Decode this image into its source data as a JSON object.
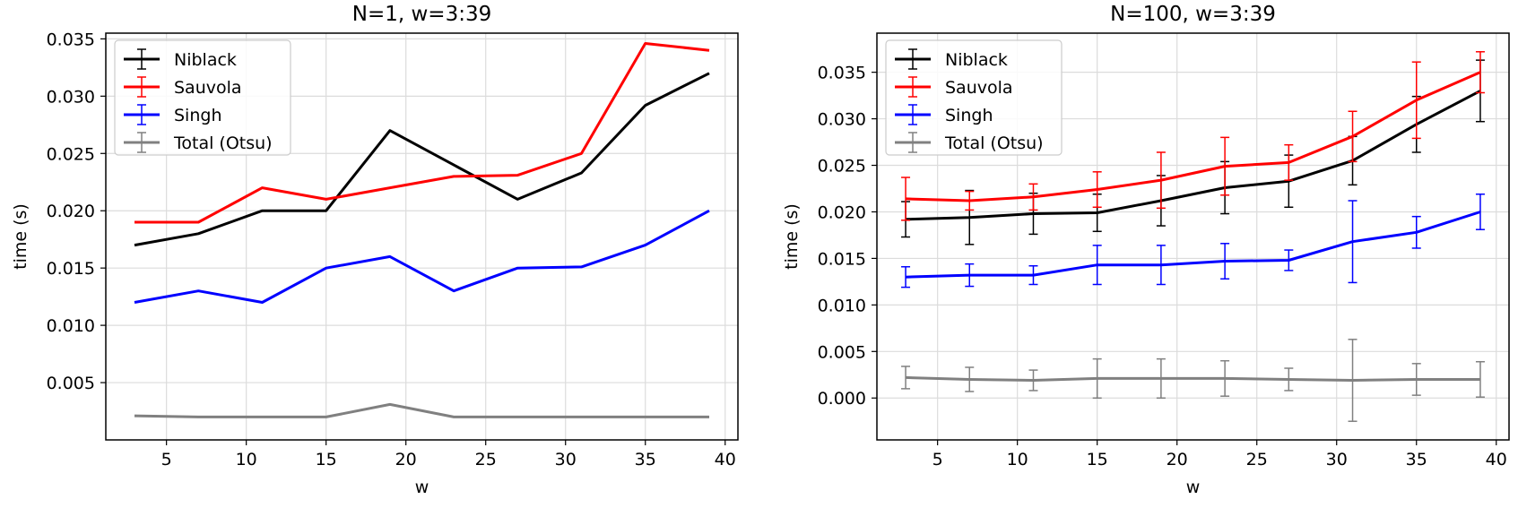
{
  "chart_data": [
    {
      "type": "line",
      "title": "N=1, w=3:39",
      "xlabel": "w",
      "ylabel": "time (s)",
      "xlim": [
        1.2,
        40.8
      ],
      "ylim": [
        0.0,
        0.0355
      ],
      "xticks": [
        5,
        10,
        15,
        20,
        25,
        30,
        35,
        40
      ],
      "xtick_labels": [
        "5",
        "10",
        "15",
        "20",
        "25",
        "30",
        "35",
        "40"
      ],
      "yticks": [
        0.005,
        0.01,
        0.015,
        0.02,
        0.025,
        0.03,
        0.035
      ],
      "ytick_labels": [
        "0.005",
        "0.010",
        "0.015",
        "0.020",
        "0.025",
        "0.030",
        "0.035"
      ],
      "grid": true,
      "legend_position": "upper-left",
      "x": [
        3,
        7,
        11,
        15,
        19,
        23,
        27,
        31,
        35,
        39
      ],
      "series": [
        {
          "name": "Niblack",
          "color": "#000000",
          "values": [
            0.017,
            0.018,
            0.02,
            0.02,
            0.027,
            0.024,
            0.021,
            0.0233,
            0.0292,
            0.032
          ]
        },
        {
          "name": "Sauvola",
          "color": "#ff0000",
          "values": [
            0.019,
            0.019,
            0.022,
            0.021,
            0.022,
            0.023,
            0.0231,
            0.025,
            0.0346,
            0.034
          ]
        },
        {
          "name": "Singh",
          "color": "#0000ff",
          "values": [
            0.012,
            0.013,
            0.012,
            0.015,
            0.016,
            0.013,
            0.015,
            0.0151,
            0.017,
            0.02
          ]
        },
        {
          "name": "Total (Otsu)",
          "color": "#808080",
          "values": [
            0.0021,
            0.002,
            0.002,
            0.002,
            0.0031,
            0.002,
            0.002,
            0.002,
            0.002,
            0.002
          ]
        }
      ]
    },
    {
      "type": "line",
      "title": "N=100, w=3:39",
      "xlabel": "w",
      "ylabel": "time (s)",
      "xlim": [
        1.2,
        40.8
      ],
      "ylim": [
        -0.0045,
        0.0392
      ],
      "xticks": [
        5,
        10,
        15,
        20,
        25,
        30,
        35,
        40
      ],
      "xtick_labels": [
        "5",
        "10",
        "15",
        "20",
        "25",
        "30",
        "35",
        "40"
      ],
      "yticks": [
        0.0,
        0.005,
        0.01,
        0.015,
        0.02,
        0.025,
        0.03,
        0.035
      ],
      "ytick_labels": [
        "0.000",
        "0.005",
        "0.010",
        "0.015",
        "0.020",
        "0.025",
        "0.030",
        "0.035"
      ],
      "grid": true,
      "legend_position": "upper-left",
      "x": [
        3,
        7,
        11,
        15,
        19,
        23,
        27,
        31,
        35,
        39
      ],
      "series": [
        {
          "name": "Niblack",
          "color": "#000000",
          "values": [
            0.0192,
            0.0194,
            0.0198,
            0.0199,
            0.0212,
            0.0226,
            0.0233,
            0.0255,
            0.0294,
            0.033
          ],
          "errors": [
            0.0019,
            0.0029,
            0.0022,
            0.002,
            0.0027,
            0.0028,
            0.0028,
            0.0026,
            0.003,
            0.0033
          ]
        },
        {
          "name": "Sauvola",
          "color": "#ff0000",
          "values": [
            0.0214,
            0.0212,
            0.0216,
            0.0224,
            0.0234,
            0.0249,
            0.0253,
            0.0281,
            0.032,
            0.035
          ],
          "errors": [
            0.0023,
            0.001,
            0.0014,
            0.0019,
            0.003,
            0.0031,
            0.0019,
            0.0027,
            0.0041,
            0.0022
          ]
        },
        {
          "name": "Singh",
          "color": "#0000ff",
          "values": [
            0.013,
            0.0132,
            0.0132,
            0.0143,
            0.0143,
            0.0147,
            0.0148,
            0.0168,
            0.0178,
            0.02
          ],
          "errors": [
            0.0011,
            0.0012,
            0.001,
            0.0021,
            0.0021,
            0.0019,
            0.0011,
            0.0044,
            0.0017,
            0.0019
          ]
        },
        {
          "name": "Total (Otsu)",
          "color": "#808080",
          "values": [
            0.0022,
            0.002,
            0.0019,
            0.0021,
            0.0021,
            0.0021,
            0.002,
            0.0019,
            0.002,
            0.002
          ],
          "errors": [
            0.0012,
            0.0013,
            0.0011,
            0.0021,
            0.0021,
            0.0019,
            0.0012,
            0.0044,
            0.0017,
            0.0019
          ]
        }
      ]
    }
  ]
}
